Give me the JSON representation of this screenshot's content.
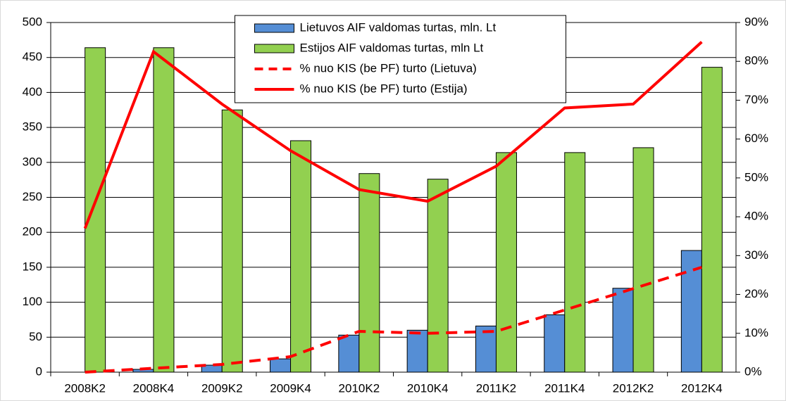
{
  "chart_data": {
    "type": "bar-line",
    "categories": [
      "2008K2",
      "2008K4",
      "2009K2",
      "2009K4",
      "2010K2",
      "2010K4",
      "2011K2",
      "2011K4",
      "2012K2",
      "2012K4"
    ],
    "series": [
      {
        "name": "Lietuvos AIF valdomas turtas, mln. Lt",
        "type": "bar",
        "color": "#558ed5",
        "values": [
          0,
          4,
          10,
          19,
          53,
          60,
          66,
          82,
          120,
          174
        ]
      },
      {
        "name": "Estijos AIF valdomas turtas, mln Lt",
        "type": "bar",
        "color": "#92d050",
        "values": [
          464,
          464,
          375,
          331,
          284,
          276,
          314,
          314,
          321,
          436
        ]
      },
      {
        "name": "% nuo KIS (be PF) turto (Lietuva)",
        "type": "line",
        "dashed": true,
        "axis": "y2",
        "color": "#ff0000",
        "values": [
          0,
          1,
          2,
          4,
          10.5,
          10,
          10.5,
          16,
          21.5,
          27
        ]
      },
      {
        "name": "% nuo KIS (be PF) turto (Estija)",
        "type": "line",
        "dashed": false,
        "axis": "y2",
        "color": "#ff0000",
        "values": [
          37,
          82.5,
          69,
          57,
          47,
          44,
          53,
          68,
          69,
          85
        ]
      }
    ],
    "ylim": [
      0,
      500
    ],
    "yticks": [
      0,
      50,
      100,
      150,
      200,
      250,
      300,
      350,
      400,
      450,
      500
    ],
    "y2lim": [
      0,
      90
    ],
    "y2ticks": [
      {
        "value": 0,
        "label": "0%"
      },
      {
        "value": 10,
        "label": "10%"
      },
      {
        "value": 20,
        "label": "20%"
      },
      {
        "value": 30,
        "label": "30%"
      },
      {
        "value": 40,
        "label": "40%"
      },
      {
        "value": 50,
        "label": "50%"
      },
      {
        "value": 60,
        "label": "60%"
      },
      {
        "value": 70,
        "label": "70%"
      },
      {
        "value": 80,
        "label": "80%"
      },
      {
        "value": 90,
        "label": "90%"
      }
    ],
    "grid": true,
    "legend": "top"
  }
}
